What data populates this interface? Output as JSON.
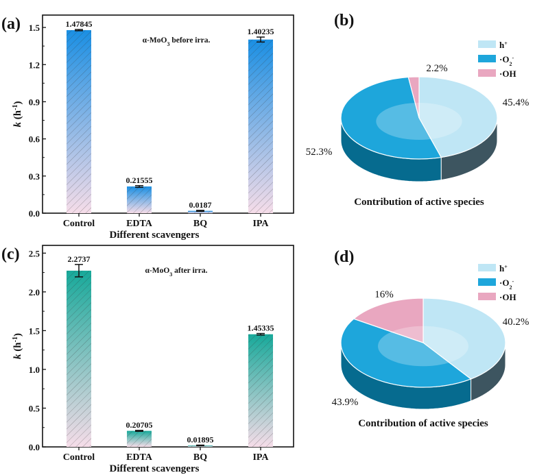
{
  "chart_data": [
    {
      "panel": "(a)",
      "type": "bar",
      "annotation": "α-MoO3 before irra.",
      "categories": [
        "Control",
        "EDTA",
        "BQ",
        "IPA"
      ],
      "values": [
        1.47845,
        0.21555,
        0.0187,
        1.40235
      ],
      "errors": [
        0.005,
        0.007,
        0.004,
        0.02
      ],
      "data_labels": [
        "1.47845",
        "0.21555",
        "0.0187",
        "1.40235"
      ],
      "xlabel": "Different scavengers",
      "ylabel": "k (h-1)",
      "ylim": [
        0,
        1.6
      ],
      "yticks": [
        "0.0",
        "0.3",
        "0.6",
        "0.9",
        "1.2",
        "1.5"
      ],
      "ytick_values": [
        0,
        0.3,
        0.6,
        0.9,
        1.2,
        1.5
      ],
      "colors": {
        "top": "#1a8fe3",
        "bottom": "#f6dde9"
      },
      "pattern": "diagonal hatch"
    },
    {
      "panel": "(b)",
      "type": "pie",
      "style": "3d",
      "title": "Contribution of active species",
      "labels": [
        "h+",
        "·O2-",
        "·OH"
      ],
      "values": [
        45.4,
        52.3,
        2.2
      ],
      "data_labels": [
        "45.4%",
        "52.3%",
        "2.2%"
      ],
      "colors": [
        "#bfe6f5",
        "#1ea6db",
        "#e9a7c0"
      ],
      "legend": "top-right"
    },
    {
      "panel": "(c)",
      "type": "bar",
      "annotation": "α-MoO3 after irra.",
      "categories": [
        "Control",
        "EDTA",
        "BQ",
        "IPA"
      ],
      "values": [
        2.2737,
        0.20705,
        0.01895,
        1.45335
      ],
      "errors": [
        0.08,
        0.006,
        0.004,
        0.01
      ],
      "data_labels": [
        "2.2737",
        "0.20705",
        "0.01895",
        "1.45335"
      ],
      "xlabel": "Different scavengers",
      "ylabel": "k (h-1)",
      "ylim": [
        0,
        2.6
      ],
      "yticks": [
        "0.0",
        "0.5",
        "1.0",
        "1.5",
        "2.0",
        "2.5"
      ],
      "ytick_values": [
        0,
        0.5,
        1.0,
        1.5,
        2.0,
        2.5
      ],
      "colors": {
        "top": "#17a99a",
        "bottom": "#f6dde9"
      },
      "pattern": "diagonal hatch"
    },
    {
      "panel": "(d)",
      "type": "pie",
      "style": "3d",
      "title": "Contribution of active species",
      "labels": [
        "h+",
        "·O2-",
        "·OH"
      ],
      "values": [
        40.2,
        43.9,
        16
      ],
      "data_labels": [
        "40.2%",
        "43.9%",
        "16%"
      ],
      "colors": [
        "#bfe6f5",
        "#1ea6db",
        "#e9a7c0"
      ],
      "legend": "top-right"
    }
  ]
}
